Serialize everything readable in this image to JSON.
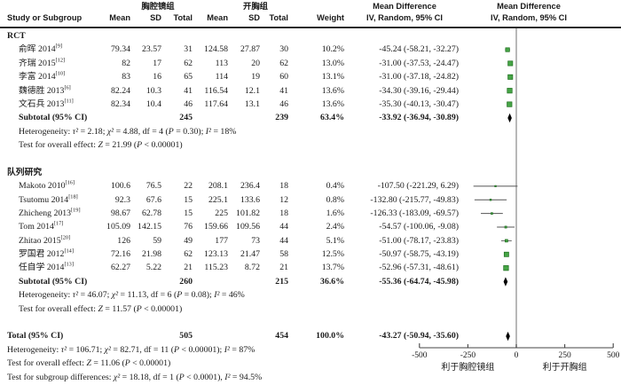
{
  "header": {
    "study": "Study or Subgroup",
    "group1": "胸腔镜组",
    "group2": "开胸组",
    "mean": "Mean",
    "sd": "SD",
    "total": "Total",
    "weight": "Weight",
    "md": "Mean Difference",
    "iv": "IV, Random, 95% CI"
  },
  "colors": {
    "square_fill": "#46a546",
    "square_stroke": "#1e6e1e",
    "diamond": "#000000",
    "ci_line": "#555555",
    "axis": "#444444",
    "zero_line": "#9a9a9a",
    "text": "#1a1a1a"
  },
  "chart_data": {
    "type": "scatter",
    "subtype": "forest-plot",
    "effect_measure": "Mean Difference, IV, Random, 95% CI",
    "xlim": [
      -500,
      500
    ],
    "axis": {
      "ticks": [
        -500,
        -250,
        0,
        250,
        500
      ],
      "favor_left": "利于胸腔镜组",
      "favor_right": "利于开胸组"
    },
    "sections": [
      {
        "name": "RCT",
        "rows": [
          {
            "label": "俞晖 2014",
            "sup": "[9]",
            "m1": "79.34",
            "sd1": "23.57",
            "t1": "31",
            "m2": "124.58",
            "sd2": "27.87",
            "t2": "30",
            "w": "10.2%",
            "ci": "-45.24 (-58.21, -32.27)",
            "est": -45.24,
            "lo": -58.21,
            "hi": -32.27,
            "weight": 10.2
          },
          {
            "label": "齐瑞 2015",
            "sup": "[12]",
            "m1": "82",
            "sd1": "17",
            "t1": "62",
            "m2": "113",
            "sd2": "20",
            "t2": "62",
            "w": "13.0%",
            "ci": "-31.00 (-37.53, -24.47)",
            "est": -31.0,
            "lo": -37.53,
            "hi": -24.47,
            "weight": 13.0
          },
          {
            "label": "李富 2014",
            "sup": "[10]",
            "m1": "83",
            "sd1": "16",
            "t1": "65",
            "m2": "114",
            "sd2": "19",
            "t2": "60",
            "w": "13.1%",
            "ci": "-31.00 (-37.18, -24.82)",
            "est": -31.0,
            "lo": -37.18,
            "hi": -24.82,
            "weight": 13.1
          },
          {
            "label": "魏德胜 2013",
            "sup": "[6]",
            "m1": "82.24",
            "sd1": "10.3",
            "t1": "41",
            "m2": "116.54",
            "sd2": "12.1",
            "t2": "41",
            "w": "13.6%",
            "ci": "-34.30 (-39.16, -29.44)",
            "est": -34.3,
            "lo": -39.16,
            "hi": -29.44,
            "weight": 13.6
          },
          {
            "label": "文石兵 2013",
            "sup": "[11]",
            "m1": "82.34",
            "sd1": "10.4",
            "t1": "46",
            "m2": "117.64",
            "sd2": "13.1",
            "t2": "46",
            "w": "13.6%",
            "ci": "-35.30 (-40.13, -30.47)",
            "est": -35.3,
            "lo": -40.13,
            "hi": -30.47,
            "weight": 13.6
          }
        ],
        "subtotal": {
          "label": "Subtotal (95% CI)",
          "t1": "245",
          "t2": "239",
          "w": "63.4%",
          "ci": "-33.92 (-36.94, -30.89)",
          "est": -33.92,
          "lo": -36.94,
          "hi": -30.89
        },
        "stats": [
          "Heterogeneity: τ² = 2.18; χ² = 4.88, df = 4 (P = 0.30); I² = 18%",
          "Test for overall effect: Z = 21.99 (P < 0.00001)"
        ]
      },
      {
        "name": "队列研究",
        "rows": [
          {
            "label": "Makoto 2010",
            "sup": "[16]",
            "m1": "100.6",
            "sd1": "76.5",
            "t1": "22",
            "m2": "208.1",
            "sd2": "236.4",
            "t2": "18",
            "w": "0.4%",
            "ci": "-107.50 (-221.29, 6.29)",
            "est": -107.5,
            "lo": -221.29,
            "hi": 6.29,
            "weight": 0.4
          },
          {
            "label": "Tsutomu 2014",
            "sup": "[18]",
            "m1": "92.3",
            "sd1": "67.6",
            "t1": "15",
            "m2": "225.1",
            "sd2": "133.6",
            "t2": "12",
            "w": "0.8%",
            "ci": "-132.80 (-215.77, -49.83)",
            "est": -132.8,
            "lo": -215.77,
            "hi": -49.83,
            "weight": 0.8
          },
          {
            "label": "Zhicheng 2013",
            "sup": "[19]",
            "m1": "98.67",
            "sd1": "62.78",
            "t1": "15",
            "m2": "225",
            "sd2": "101.82",
            "t2": "18",
            "w": "1.6%",
            "ci": "-126.33 (-183.09, -69.57)",
            "est": -126.33,
            "lo": -183.09,
            "hi": -69.57,
            "weight": 1.6
          },
          {
            "label": "Tom 2014",
            "sup": "[17]",
            "m1": "105.09",
            "sd1": "142.15",
            "t1": "76",
            "m2": "159.66",
            "sd2": "109.56",
            "t2": "44",
            "w": "2.4%",
            "ci": "-54.57 (-100.06, -9.08)",
            "est": -54.57,
            "lo": -100.06,
            "hi": -9.08,
            "weight": 2.4
          },
          {
            "label": "Zhitao 2015",
            "sup": "[20]",
            "m1": "126",
            "sd1": "59",
            "t1": "49",
            "m2": "177",
            "sd2": "73",
            "t2": "44",
            "w": "5.1%",
            "ci": "-51.00 (-78.17, -23.83)",
            "est": -51.0,
            "lo": -78.17,
            "hi": -23.83,
            "weight": 5.1
          },
          {
            "label": "罗国君 2012",
            "sup": "[14]",
            "m1": "72.16",
            "sd1": "21.98",
            "t1": "62",
            "m2": "123.13",
            "sd2": "21.47",
            "t2": "58",
            "w": "12.5%",
            "ci": "-50.97 (-58.75, -43.19)",
            "est": -50.97,
            "lo": -58.75,
            "hi": -43.19,
            "weight": 12.5
          },
          {
            "label": "任自学 2014",
            "sup": "[13]",
            "m1": "62.27",
            "sd1": "5.22",
            "t1": "21",
            "m2": "115.23",
            "sd2": "8.72",
            "t2": "21",
            "w": "13.7%",
            "ci": "-52.96 (-57.31, -48.61)",
            "est": -52.96,
            "lo": -57.31,
            "hi": -48.61,
            "weight": 13.7
          }
        ],
        "subtotal": {
          "label": "Subtotal (95% CI)",
          "t1": "260",
          "t2": "215",
          "w": "36.6%",
          "ci": "-55.36 (-64.74, -45.98)",
          "est": -55.36,
          "lo": -64.74,
          "hi": -45.98
        },
        "stats": [
          "Heterogeneity: τ² = 46.07; χ² = 11.13, df = 6 (P = 0.08); I² = 46%",
          "Test for overall effect: Z = 11.57 (P < 0.00001)"
        ]
      }
    ],
    "total": {
      "label": "Total (95% CI)",
      "t1": "505",
      "t2": "454",
      "w": "100.0%",
      "ci": "-43.27 (-50.94, -35.60)",
      "est": -43.27,
      "lo": -50.94,
      "hi": -35.6,
      "stats": [
        "Heterogeneity: τ² = 106.71; χ² = 82.71, df = 11 (P < 0.00001); I² = 87%",
        "Test for overall effect: Z = 11.06 (P < 0.00001)",
        "Test for subgroup differences: χ² = 18.18, df = 1 (P < 0.0001), I² = 94.5%"
      ]
    }
  }
}
